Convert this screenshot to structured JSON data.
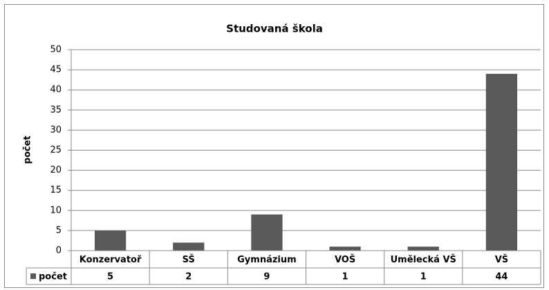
{
  "chart_data": {
    "type": "bar",
    "title": "Studovaná škola",
    "y_label": "počet",
    "categories": [
      "Konzervatoř",
      "SŠ",
      "Gymnázium",
      "VOŠ",
      "Umělecká VŠ",
      "VŠ"
    ],
    "series": [
      {
        "name": "počet",
        "color": "#595959",
        "values": [
          5,
          2,
          9,
          1,
          1,
          44
        ]
      }
    ],
    "ylim": [
      0,
      50
    ],
    "yticks": [
      0,
      5,
      10,
      15,
      20,
      25,
      30,
      35,
      40,
      45,
      50
    ],
    "grid": true,
    "data_table": true
  }
}
